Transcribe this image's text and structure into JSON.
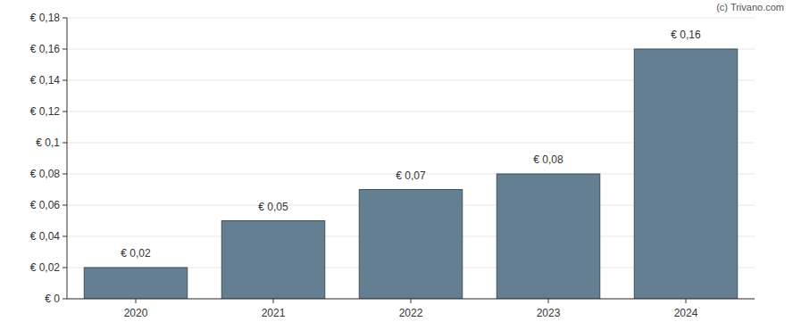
{
  "chart_data": {
    "type": "bar",
    "annotations": [
      "(c) Trivano.com"
    ],
    "categories": [
      "2020",
      "2021",
      "2022",
      "2023",
      "2024"
    ],
    "values": [
      0.02,
      0.05,
      0.07,
      0.08,
      0.16
    ],
    "value_labels": [
      "€ 0,02",
      "€ 0,05",
      "€ 0,07",
      "€ 0,08",
      "€ 0,16"
    ],
    "data_labels": true,
    "color": "#637f91",
    "ylim": [
      0,
      0.18
    ],
    "yticks": [
      {
        "value": 0,
        "label": "€ 0"
      },
      {
        "value": 0.02,
        "label": "€ 0,02"
      },
      {
        "value": 0.04,
        "label": "€ 0,04"
      },
      {
        "value": 0.06,
        "label": "€ 0,06"
      },
      {
        "value": 0.08,
        "label": "€ 0,08"
      },
      {
        "value": 0.1,
        "label": "€ 0,1"
      },
      {
        "value": 0.12,
        "label": "€ 0,12"
      },
      {
        "value": 0.14,
        "label": "€ 0,14"
      },
      {
        "value": 0.16,
        "label": "€ 0,16"
      },
      {
        "value": 0.18,
        "label": "€ 0,18"
      }
    ],
    "grid": true
  }
}
